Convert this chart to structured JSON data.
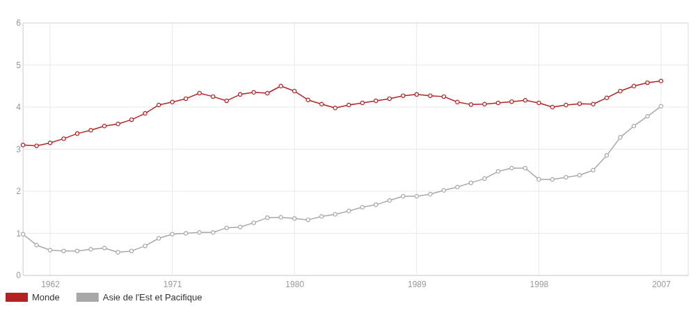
{
  "chart_data": {
    "type": "line",
    "x": [
      1960,
      1961,
      1962,
      1963,
      1964,
      1965,
      1966,
      1967,
      1968,
      1969,
      1970,
      1971,
      1972,
      1973,
      1974,
      1975,
      1976,
      1977,
      1978,
      1979,
      1980,
      1981,
      1982,
      1983,
      1984,
      1985,
      1986,
      1987,
      1988,
      1989,
      1990,
      1991,
      1992,
      1993,
      1994,
      1995,
      1996,
      1997,
      1998,
      1999,
      2000,
      2001,
      2002,
      2003,
      2004,
      2005,
      2006,
      2007
    ],
    "series": [
      {
        "name": "Monde",
        "color": "#b22222",
        "values": [
          3.1,
          3.08,
          3.15,
          3.25,
          3.37,
          3.45,
          3.55,
          3.6,
          3.7,
          3.85,
          4.05,
          4.12,
          4.2,
          4.33,
          4.25,
          4.15,
          4.3,
          4.35,
          4.33,
          4.5,
          4.38,
          4.17,
          4.07,
          3.98,
          4.05,
          4.1,
          4.15,
          4.2,
          4.27,
          4.3,
          4.27,
          4.25,
          4.12,
          4.06,
          4.07,
          4.1,
          4.13,
          4.16,
          4.1,
          4.0,
          4.05,
          4.08,
          4.07,
          4.22,
          4.38,
          4.5,
          4.58,
          4.62
        ]
      },
      {
        "name": "Asie de l'Est et Pacifique",
        "color": "#a8a8a8",
        "values": [
          0.98,
          0.72,
          0.6,
          0.58,
          0.58,
          0.62,
          0.65,
          0.55,
          0.58,
          0.7,
          0.88,
          0.98,
          1.0,
          1.02,
          1.02,
          1.13,
          1.15,
          1.25,
          1.37,
          1.38,
          1.35,
          1.32,
          1.4,
          1.45,
          1.53,
          1.62,
          1.68,
          1.78,
          1.88,
          1.88,
          1.93,
          2.02,
          2.1,
          2.2,
          2.3,
          2.47,
          2.55,
          2.55,
          2.28,
          2.28,
          2.33,
          2.38,
          2.5,
          2.85,
          3.28,
          3.55,
          3.78,
          4.02
        ]
      }
    ],
    "xlim": [
      1960,
      2009
    ],
    "xticks": [
      1962,
      1971,
      1980,
      1989,
      1998,
      2007
    ],
    "ylim": [
      0,
      6
    ],
    "yticks": [
      0,
      1,
      2,
      3,
      4,
      5,
      6
    ],
    "grid": true,
    "legend": "bottom left",
    "marker": "circle",
    "line_style": "solid"
  }
}
